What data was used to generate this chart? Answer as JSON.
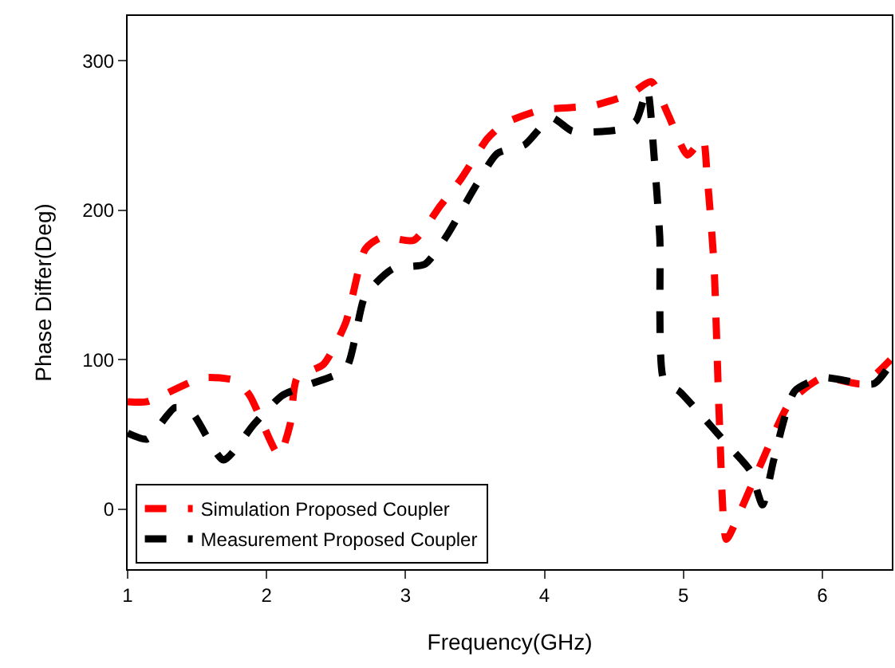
{
  "chart_data": {
    "type": "line",
    "xlabel": "Frequency(GHz)",
    "ylabel": "Phase Differ(Deg)",
    "xlim": [
      1,
      6.5
    ],
    "ylim": [
      -40,
      330
    ],
    "xticks": [
      1,
      2,
      3,
      4,
      5,
      6
    ],
    "yticks": [
      0,
      100,
      200,
      300
    ],
    "legend": "bottom left",
    "line_style": "dashed",
    "marker": "none",
    "series": [
      {
        "name": "Simulation Proposed Coupler",
        "color": "#ff0000",
        "x": [
          1,
          1.14,
          1.54,
          1.78,
          1.88,
          2.09,
          2.17,
          2.22,
          2.41,
          2.57,
          2.71,
          2.83,
          3.06,
          3.25,
          3.4,
          3.59,
          3.71,
          3.97,
          4.35,
          4.62,
          4.77,
          4.89,
          5.03,
          5.14,
          5.17,
          5.22,
          5.26,
          5.31,
          5.42,
          5.57,
          5.77,
          6.0,
          6.29,
          6.49
        ],
        "values": [
          72,
          72,
          88,
          86,
          76,
          36,
          57,
          88,
          97,
          125,
          174,
          182,
          180,
          203,
          221,
          248,
          258,
          267,
          270,
          278,
          286,
          264,
          237,
          248,
          224,
          164,
          57,
          -20,
          1,
          33,
          72,
          88,
          84,
          100
        ]
      },
      {
        "name": "Measurement Proposed Coupler",
        "color": "#000000",
        "x": [
          1,
          1.14,
          1.34,
          1.46,
          1.69,
          1.91,
          2.11,
          2.29,
          2.57,
          2.71,
          2.91,
          3.14,
          3.29,
          3.51,
          3.66,
          3.86,
          4.05,
          4.2,
          4.54,
          4.66,
          4.74,
          4.79,
          4.83,
          4.86,
          4.97,
          5.11,
          5.31,
          5.48,
          5.57,
          5.65,
          5.8,
          6.0,
          6.37,
          6.49
        ],
        "values": [
          51,
          47,
          68,
          65,
          33,
          57,
          76,
          83,
          94,
          143,
          161,
          164,
          182,
          217,
          238,
          244,
          262,
          253,
          254,
          260,
          281,
          235,
          182,
          86,
          79,
          65,
          44,
          26,
          3,
          33,
          79,
          88,
          84,
          97
        ]
      }
    ]
  }
}
